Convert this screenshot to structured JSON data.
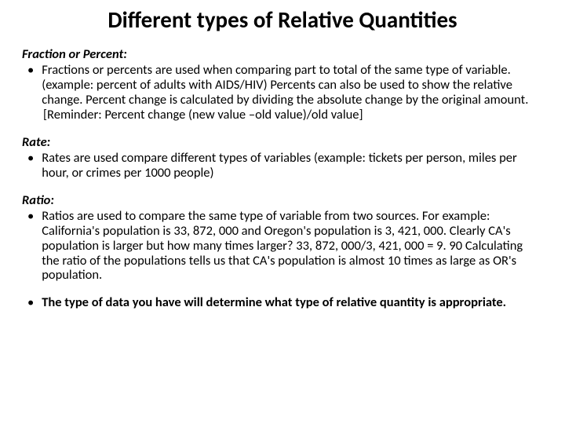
{
  "title": "Different types of Relative Quantities",
  "sections": {
    "fraction": {
      "heading": "Fraction or Percent:",
      "body": "Fractions or percents are used when comparing part to total of the same type of variable.  (example: percent of adults with AIDS/HIV)  Percents can also be used to show the relative change.  Percent change is calculated by dividing the absolute change by the original amount.",
      "reminder": "[Reminder: Percent change (new value –old value)/old value]"
    },
    "rate": {
      "heading": "Rate:",
      "body": "Rates are used compare different types of variables (example: tickets per person, miles per hour, or crimes per 1000 people)"
    },
    "ratio": {
      "heading": "Ratio:",
      "body": "Ratios are used to compare the same type of variable from two sources.  For example: California's population is 33, 872, 000 and Oregon's population is 3, 421, 000.  Clearly CA's population is larger but how many times larger?  33, 872, 000/3, 421, 000 = 9. 90  Calculating the ratio of the populations tells us that CA's population is almost 10 times as large as OR's population."
    },
    "final": {
      "body": "The type of data you have will determine what type of relative quantity is appropriate."
    }
  },
  "bullet_char": "•",
  "style": {
    "title_fontsize": 29,
    "body_fontsize": 16.5,
    "background_color": "#ffffff",
    "text_color": "#000000",
    "font_family": "Calibri, Arial, sans-serif"
  }
}
